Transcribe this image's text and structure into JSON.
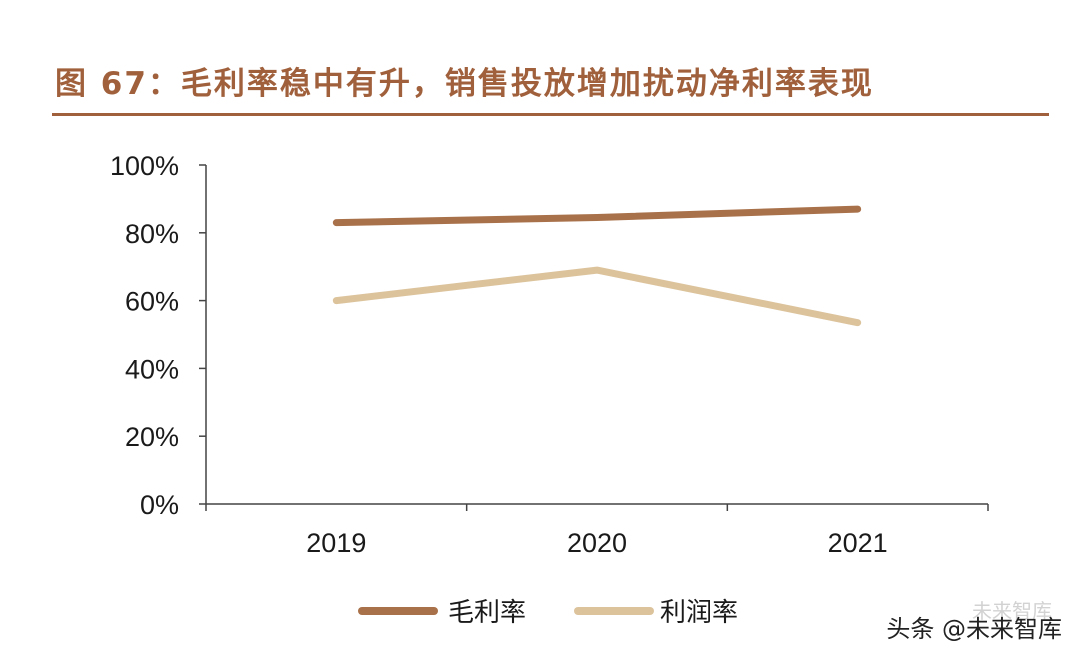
{
  "title": "图 67：毛利率稳中有升，销售投放增加扰动净利率表现",
  "chart_data": {
    "type": "line",
    "categories": [
      "2019",
      "2020",
      "2021"
    ],
    "series": [
      {
        "name": "毛利率",
        "values": [
          83,
          84.5,
          87
        ],
        "color": "#a9714a"
      },
      {
        "name": "利润率",
        "values": [
          60,
          69,
          53.5
        ],
        "color": "#dcc39c"
      }
    ],
    "yticks": [
      "0%",
      "20%",
      "40%",
      "60%",
      "80%",
      "100%"
    ],
    "ylim": [
      0,
      100
    ],
    "grid": false,
    "legend_position": "bottom-center"
  },
  "watermark": {
    "logo_text": "未来智库",
    "text": "头条 @未来智库"
  }
}
